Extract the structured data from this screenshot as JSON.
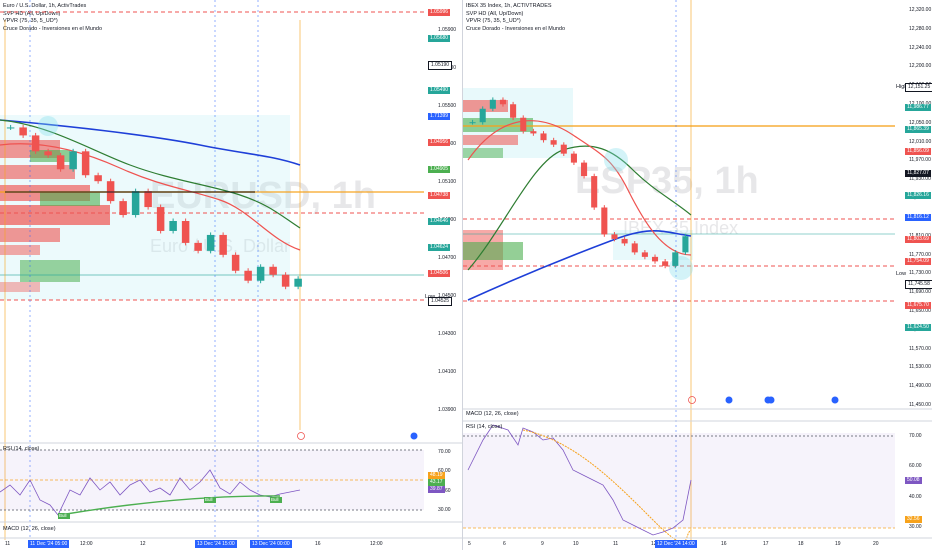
{
  "left": {
    "header": {
      "title": "Euro / U.S. Dollar, 1h, ActivTrades",
      "ind1": "SVP HD (All, Up/Down)",
      "ind2": "VPVR (75, 35, 5_UD*)",
      "ind3": "Cruce Dorado - Inversiones en el Mundo"
    },
    "watermark": "EURUSD, 1h",
    "watermark_sub": "Euro / U.S. Dollar",
    "low_label": "Low",
    "price_ticks": [
      "1.05900",
      "1.05700",
      "1.05500",
      "1.05300",
      "1.05100",
      "1.04900",
      "1.04700",
      "1.04500",
      "1.04300",
      "1.04100",
      "1.03900"
    ],
    "price_tags": [
      {
        "text": "1.05996",
        "color": "#ef5350"
      },
      {
        "text": "1.05680",
        "color": "#26a69a"
      },
      {
        "text": "1.05190",
        "color": "#ffffff",
        "border": "#131722"
      },
      {
        "text": "1.05490",
        "color": "#26a69a"
      },
      {
        "text": "1.71399",
        "color": "#2962ff"
      },
      {
        "text": "1.04956",
        "color": "#ef5350"
      },
      {
        "text": "1.04905",
        "color": "#4caf50"
      },
      {
        "text": "1.04738",
        "color": "#ef5350"
      },
      {
        "text": "1.04646",
        "color": "#26a69a"
      },
      {
        "text": "1.04624",
        "color": "#26a69a"
      },
      {
        "text": "1.04506",
        "color": "#ef5350"
      },
      {
        "text": "1.04525",
        "color": "#ffffff",
        "border": "#131722"
      }
    ],
    "rsi": {
      "label": "RSI (14, close)",
      "ticks": [
        "70.00",
        "60.00",
        "45.60",
        "30.00"
      ],
      "tags": [
        {
          "text": "48.19",
          "color": "#f7a21b"
        },
        {
          "text": "43.17",
          "color": "#4caf50"
        },
        {
          "text": "39.87",
          "color": "#7e57c2"
        }
      ],
      "bull_labels": [
        "Bull",
        "Bull",
        "Bull"
      ]
    },
    "macd_label": "MACD (12, 26, close)",
    "time_ticks": [
      "11",
      "12:00",
      "12",
      "12:00",
      "13",
      "16",
      "12:00"
    ],
    "time_highlights": [
      "11 Dec '24  05:00",
      "13 Dec '24  15:00",
      "13 Dec '24  00:00"
    ]
  },
  "right": {
    "header": {
      "title": "IBEX 35 Index, 1h, ACTIVTRADES",
      "ind1": "SVP HD (All, Up/Down)",
      "ind2": "VPVR (75, 35, 5_UD*)",
      "ind3": "Cruce Dorado - Inversiones en el Mundo"
    },
    "watermark": "ESP35, 1h",
    "watermark_sub": "IBEX 35 Index",
    "high_label": "High",
    "low_label": "Low",
    "price_ticks": [
      "12,320.00",
      "12,280.00",
      "12,240.00",
      "12,200.00",
      "12,160.00",
      "12,100.00",
      "12,050.00",
      "12,010.00",
      "11,970.00",
      "11,930.00",
      "11,890.00",
      "11,850.00",
      "11,810.00",
      "11,770.00",
      "11,730.00",
      "11,690.00",
      "11,650.00",
      "11,610.00",
      "11,570.00",
      "11,530.00",
      "11,490.00",
      "11,450.00"
    ],
    "price_tags": [
      {
        "text": "12,151.25",
        "color": "#ffffff",
        "border": "#131722"
      },
      {
        "text": "11,986.77",
        "color": "#26a69a"
      },
      {
        "text": "11,865.39",
        "color": "#26a69a"
      },
      {
        "text": "11,856.09",
        "color": "#ef5350"
      },
      {
        "text": "11,827.07",
        "color": "#131722"
      },
      {
        "text": "11,826.16",
        "color": "#26a69a"
      },
      {
        "text": "11,816.12",
        "color": "#2962ff"
      },
      {
        "text": "11,803.69",
        "color": "#ef5350"
      },
      {
        "text": "11,754.09",
        "color": "#ef5350"
      },
      {
        "text": "11,745.58",
        "color": "#ffffff",
        "border": "#131722"
      },
      {
        "text": "11,675.70",
        "color": "#ef5350"
      },
      {
        "text": "11,624.50",
        "color": "#26a69a"
      }
    ],
    "rsi": {
      "label": "RSI (14, close)",
      "ticks": [
        "70.00",
        "60.00",
        "40.00",
        "30.00"
      ],
      "tags": [
        {
          "text": "50.08",
          "color": "#7e57c2"
        },
        {
          "text": "32.56",
          "color": "#f7a21b"
        }
      ]
    },
    "macd_label": "MACD (12, 26, close)",
    "time_ticks": [
      "5",
      "6",
      "9",
      "10",
      "11",
      "12",
      "16",
      "17",
      "18",
      "19",
      "20"
    ],
    "time_highlights": [
      "12 Dec '24  14:00"
    ]
  },
  "chart_data": [
    {
      "type": "line",
      "title": "Euro / U.S. Dollar, 1h, ActivTrades",
      "series": [
        {
          "name": "Close (approx.)",
          "values": [
            1.0542,
            1.0538,
            1.053,
            1.0528,
            1.0521,
            1.053,
            1.0518,
            1.0515,
            1.0505,
            1.0498,
            1.051,
            1.0502,
            1.049,
            1.0495,
            1.0484,
            1.048,
            1.0488,
            1.0478,
            1.047,
            1.0465,
            1.0472,
            1.0468,
            1.0462,
            1.0466
          ]
        }
      ],
      "ylim": [
        1.039,
        1.06
      ]
    },
    {
      "type": "line",
      "title": "IBEX 35 Index, 1h, ACTIVTRADES",
      "series": [
        {
          "name": "Close (approx.)",
          "values": [
            12080,
            12110,
            12130,
            12120,
            12090,
            12060,
            12055,
            12040,
            12030,
            12010,
            11990,
            11960,
            11890,
            11830,
            11820,
            11810,
            11790,
            11780,
            11770,
            11760,
            11790,
            11826
          ]
        }
      ],
      "ylim": [
        11450,
        12330
      ]
    }
  ]
}
